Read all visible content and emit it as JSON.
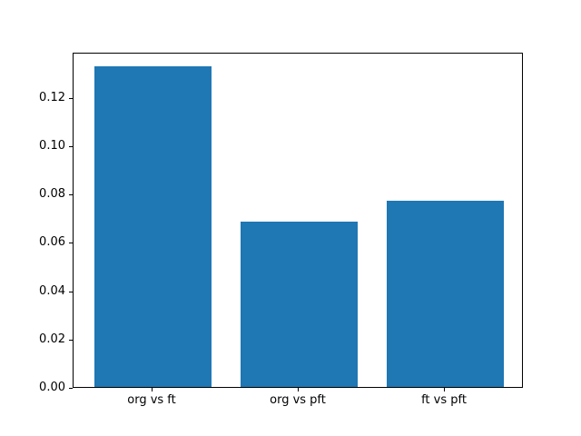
{
  "chart_data": {
    "type": "bar",
    "categories": [
      "org vs ft",
      "org vs pft",
      "ft vs pft"
    ],
    "values": [
      0.1325,
      0.0685,
      0.077
    ],
    "title": "",
    "xlabel": "",
    "ylabel": "",
    "ylim": [
      0,
      0.1386
    ],
    "xlim": [
      -0.54,
      2.54
    ],
    "bar_width": 0.8,
    "yticks": [
      0.0,
      0.02,
      0.04,
      0.06,
      0.08,
      0.1,
      0.12
    ],
    "ytick_labels": [
      "0.00",
      "0.02",
      "0.04",
      "0.06",
      "0.08",
      "0.10",
      "0.12"
    ],
    "bar_color": "#1f77b4",
    "spine_color": "#000000",
    "text_color": "#000000",
    "background_color": "#ffffff",
    "grid": false,
    "legend": null
  }
}
